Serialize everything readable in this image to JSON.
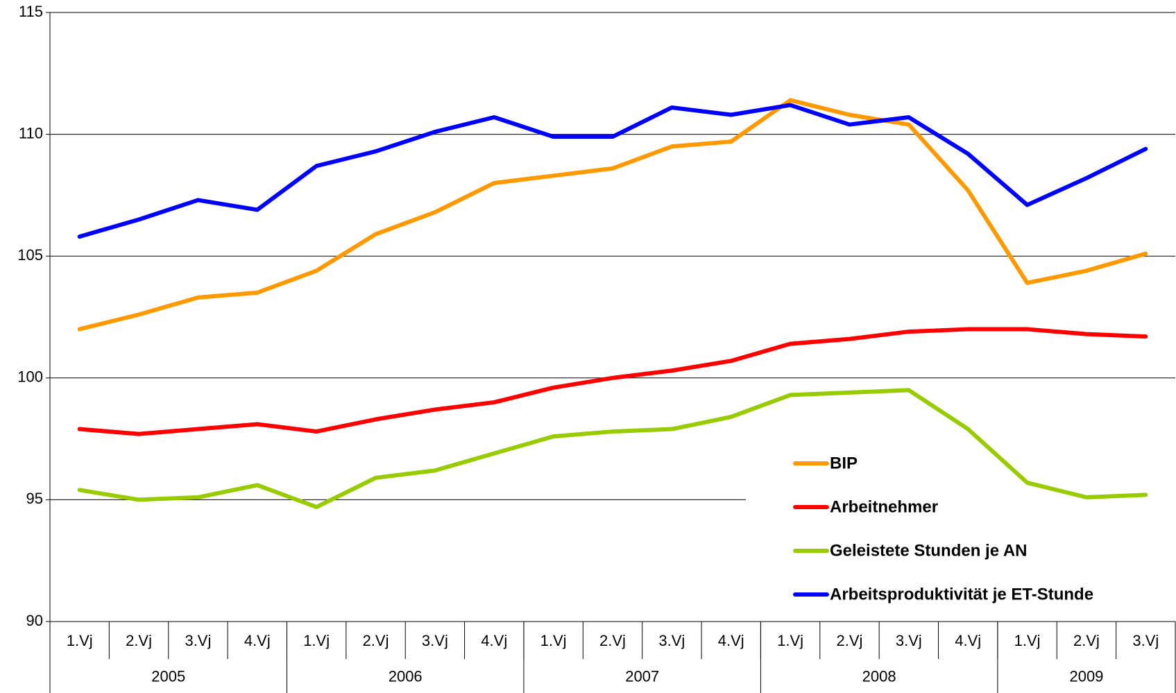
{
  "chart_data": {
    "type": "line",
    "categories": [
      "1.Vj",
      "2.Vj",
      "3.Vj",
      "4.Vj",
      "1.Vj",
      "2.Vj",
      "3.Vj",
      "4.Vj",
      "1.Vj",
      "2.Vj",
      "3.Vj",
      "4.Vj",
      "1.Vj",
      "2.Vj",
      "3.Vj",
      "4.Vj",
      "1.Vj",
      "2.Vj",
      "3.Vj"
    ],
    "year_groups": [
      {
        "label": "2005",
        "span": 4
      },
      {
        "label": "2006",
        "span": 4
      },
      {
        "label": "2007",
        "span": 4
      },
      {
        "label": "2008",
        "span": 4
      },
      {
        "label": "2009",
        "span": 3
      }
    ],
    "ylim": [
      90,
      115
    ],
    "yticks": [
      90,
      95,
      100,
      105,
      110,
      115
    ],
    "grid": true,
    "series": [
      {
        "name": "BIP",
        "color": "#ff9900",
        "values": [
          102.0,
          102.6,
          103.3,
          103.5,
          104.4,
          105.9,
          106.8,
          108.0,
          108.3,
          108.6,
          109.5,
          109.7,
          111.4,
          110.8,
          110.4,
          107.7,
          103.9,
          104.4,
          105.1
        ]
      },
      {
        "name": "Arbeitnehmer",
        "color": "#ff0000",
        "values": [
          97.9,
          97.7,
          97.9,
          98.1,
          97.8,
          98.3,
          98.7,
          99.0,
          99.6,
          100.0,
          100.3,
          100.7,
          101.4,
          101.6,
          101.9,
          102.0,
          102.0,
          101.8,
          101.7
        ]
      },
      {
        "name": "Geleistete Stunden je AN",
        "color": "#99cc00",
        "values": [
          95.4,
          95.0,
          95.1,
          95.6,
          94.7,
          95.9,
          96.2,
          96.9,
          97.6,
          97.8,
          97.9,
          98.4,
          99.3,
          99.4,
          99.5,
          97.9,
          95.7,
          95.1,
          95.2
        ]
      },
      {
        "name": "Arbeitsproduktivität je ET-Stunde",
        "color": "#0000ff",
        "values": [
          105.8,
          106.5,
          107.3,
          106.9,
          108.7,
          109.3,
          110.1,
          110.7,
          109.9,
          109.9,
          111.1,
          110.8,
          111.2,
          110.4,
          110.7,
          109.2,
          107.1,
          108.2,
          109.4
        ]
      }
    ]
  }
}
